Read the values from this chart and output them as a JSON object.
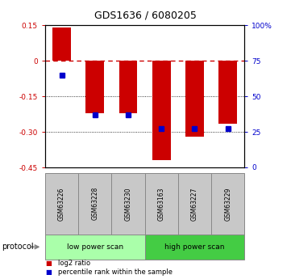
{
  "title": "GDS1636 / 6080205",
  "samples": [
    "GSM63226",
    "GSM63228",
    "GSM63230",
    "GSM63163",
    "GSM63227",
    "GSM63229"
  ],
  "log2_ratios": [
    0.14,
    -0.22,
    -0.22,
    -0.42,
    -0.32,
    -0.265
  ],
  "percentile_ranks": [
    65,
    37,
    37,
    27,
    27,
    27
  ],
  "ylim_left": [
    -0.45,
    0.15
  ],
  "ylim_right": [
    0,
    100
  ],
  "yticks_left": [
    0.15,
    0.0,
    -0.15,
    -0.3,
    -0.45
  ],
  "ytick_labels_left": [
    "0.15",
    "0",
    "-0.15",
    "-0.30",
    "-0.45"
  ],
  "yticks_right": [
    100,
    75,
    50,
    25,
    0
  ],
  "ytick_labels_right": [
    "100%",
    "75",
    "50",
    "25",
    "0"
  ],
  "bar_color": "#CC0000",
  "dot_color": "#0000CC",
  "protocol_groups": [
    {
      "label": "low power scan",
      "n_samples": 3,
      "color": "#AAFFAA"
    },
    {
      "label": "high power scan",
      "n_samples": 3,
      "color": "#44CC44"
    }
  ],
  "protocol_label": "protocol",
  "legend_items": [
    {
      "color": "#CC0000",
      "label": "log2 ratio"
    },
    {
      "color": "#0000CC",
      "label": "percentile rank within the sample"
    }
  ],
  "sample_box_color": "#C8C8C8",
  "bar_color_red": "#CC0000",
  "hline_zero_color": "#CC0000",
  "bar_width": 0.55
}
